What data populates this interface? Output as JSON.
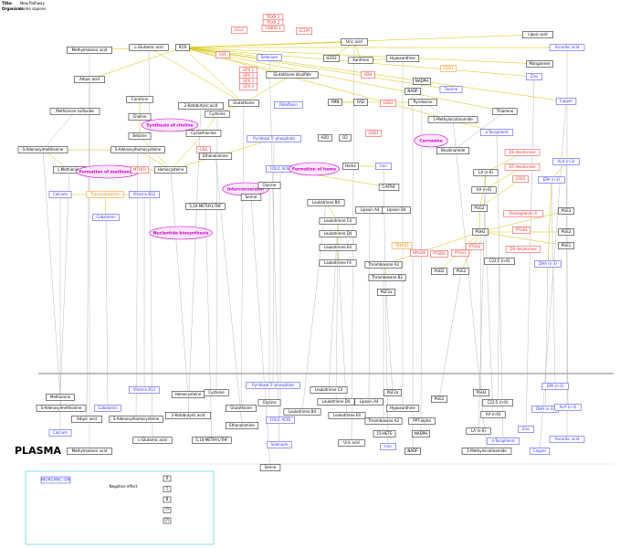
{
  "header": {
    "title_label": "Title:",
    "title": "New Pathway",
    "organism_label": "Organism:",
    "organism": "Homo sapiens"
  },
  "compartment": "PLASMA",
  "nodes": [
    {
      "label": "Methylmalonic acid"
    },
    {
      "label": "L-Glutamic acid"
    },
    {
      "label": "ROS"
    },
    {
      "label": "TRXR 1"
    },
    {
      "label": "TRXR 2"
    },
    {
      "label": "TXNRD 1"
    },
    {
      "label": "GCLC"
    },
    {
      "label": "GCLM"
    },
    {
      "label": "Selenium"
    },
    {
      "label": "GSS"
    },
    {
      "label": "GPX 1"
    },
    {
      "label": "GPX 2"
    },
    {
      "label": "GPX 3"
    },
    {
      "label": "GPX 4"
    },
    {
      "label": "Glutathione disulfide"
    },
    {
      "label": "H2O2"
    },
    {
      "label": "Uric acid"
    },
    {
      "label": "Xanthine"
    },
    {
      "label": "Hypoxanthine"
    },
    {
      "label": "XDH"
    },
    {
      "label": "NADPH"
    },
    {
      "label": "NADP"
    },
    {
      "label": "Taurine"
    },
    {
      "label": "CDO1"
    },
    {
      "label": "Lipoic acid"
    },
    {
      "label": "Ascorbic acid"
    },
    {
      "label": "Manganese"
    },
    {
      "label": "Zinc"
    },
    {
      "label": "Copper"
    },
    {
      "label": "Adipic acid"
    },
    {
      "label": "Methionine sulfoxide"
    },
    {
      "label": "Carnitine"
    },
    {
      "label": "Choline"
    },
    {
      "label": "Betaine"
    },
    {
      "label": "2-Ketobutyric acid"
    },
    {
      "label": "Cysteine"
    },
    {
      "label": "Glutathione"
    },
    {
      "label": "Riboflavin"
    },
    {
      "label": "FMN"
    },
    {
      "label": "FAD"
    },
    {
      "label": "Pyridoxine"
    },
    {
      "label": "Thiamine"
    },
    {
      "label": "Synthesis of choline"
    },
    {
      "label": "Cystathionine"
    },
    {
      "label": "Pyridoxal 5'-phosphate"
    },
    {
      "label": "H2O"
    },
    {
      "label": "O2"
    },
    {
      "label": "SOD1"
    },
    {
      "label": "SOD2"
    },
    {
      "label": "1-Methylnicotinamide"
    },
    {
      "label": "Nicotinamide"
    },
    {
      "label": "Carnosine"
    },
    {
      "label": "a-Tocopherol"
    },
    {
      "label": "S-Adenosylmethionine"
    },
    {
      "label": "S-Adenosylhomocysteine"
    },
    {
      "label": "L-Methionine"
    },
    {
      "label": "Formation of methionine"
    },
    {
      "label": "MTHFR"
    },
    {
      "label": "Homocysteine"
    },
    {
      "label": "CBS"
    },
    {
      "label": "Ethanolamine"
    },
    {
      "label": "FOLIC ACID"
    },
    {
      "label": "Formation of heme"
    },
    {
      "label": "Heme"
    },
    {
      "label": "Iron"
    },
    {
      "label": "5-MTHF"
    },
    {
      "label": "Calcium"
    },
    {
      "label": "Transcobalamin"
    },
    {
      "label": "Vitamin B12"
    },
    {
      "label": "Interconversion"
    },
    {
      "label": "Glycine"
    },
    {
      "label": "Serine"
    },
    {
      "label": "5,10-METHYL-THF"
    },
    {
      "label": "Cobalamin"
    },
    {
      "label": "Nucleotide biosynthesis"
    },
    {
      "label": "Leukotriene B4"
    },
    {
      "label": "Leukotriene C4"
    },
    {
      "label": "Leukotriene D4"
    },
    {
      "label": "Leukotriene E4"
    },
    {
      "label": "Leukotriene F4"
    },
    {
      "label": "Lipoxin A4"
    },
    {
      "label": "Lipoxin B4"
    },
    {
      "label": "LA (n-6)"
    },
    {
      "label": "AA (n-6)"
    },
    {
      "label": "ALA (n-3)"
    },
    {
      "label": "EPA (n-3)"
    },
    {
      "label": "PGG2"
    },
    {
      "label": "PGH2"
    },
    {
      "label": "D6 desaturase"
    },
    {
      "label": "D5 desaturase"
    },
    {
      "label": "COX2"
    },
    {
      "label": "Prostaglandin E"
    },
    {
      "label": "PTGES"
    },
    {
      "label": "D9 desaturase"
    },
    {
      "label": "PGE3"
    },
    {
      "label": "PGE2"
    },
    {
      "label": "PGE1"
    },
    {
      "label": "C22:5 (n-6)"
    },
    {
      "label": "DHA (n-3)"
    },
    {
      "label": "Thromboxane A2"
    },
    {
      "label": "Thromboxane B2"
    },
    {
      "label": "PGF2a"
    },
    {
      "label": "PGD2"
    },
    {
      "label": "PGE2"
    },
    {
      "label": "TBXAS1"
    },
    {
      "label": "HPGDS"
    },
    {
      "label": "PTGDS"
    },
    {
      "label": "PTGS1"
    },
    {
      "label": "PTGS2"
    },
    {
      "label": "Methionine"
    },
    {
      "label": "S-Adenosylmethionine"
    },
    {
      "label": "Calcium"
    },
    {
      "label": "Adipic acid"
    },
    {
      "label": "Methylmalonic acid"
    },
    {
      "label": "Cobalamin"
    },
    {
      "label": "Vitamin B12"
    },
    {
      "label": "S-Adenosylhomocysteine"
    },
    {
      "label": "L-Glutamic acid"
    },
    {
      "label": "Homocysteine"
    },
    {
      "label": "Cysteine"
    },
    {
      "label": "2-Ketobutyric acid"
    },
    {
      "label": "5,10-METHYL-THF"
    },
    {
      "label": "Pyridoxal 5'-phosphate"
    },
    {
      "label": "Glycine"
    },
    {
      "label": "FOLIC ACID"
    },
    {
      "label": "Selenium"
    },
    {
      "label": "Glutathione"
    },
    {
      "label": "Ethanolamine"
    },
    {
      "label": "Serine"
    },
    {
      "label": "Leukotriene C4"
    },
    {
      "label": "Leukotriene D4"
    },
    {
      "label": "Leukotriene B4"
    },
    {
      "label": "Leukotriene E4"
    },
    {
      "label": "Uric acid"
    },
    {
      "label": "Lipoxin A4"
    },
    {
      "label": "PGF2a"
    },
    {
      "label": "Hypoxanthine"
    },
    {
      "label": "Thromboxane A2"
    },
    {
      "label": "PPT-alpha"
    },
    {
      "label": "15-HETE"
    },
    {
      "label": "NADPH"
    },
    {
      "label": "Iron"
    },
    {
      "label": "NADP"
    },
    {
      "label": "PGE2"
    },
    {
      "label": "PGH2"
    },
    {
      "label": "C22:5 (n-6)"
    },
    {
      "label": "AA (n-6)"
    },
    {
      "label": "LA (n-6)"
    },
    {
      "label": "a-Tocopherol"
    },
    {
      "label": "1-Methylnicotinamide"
    },
    {
      "label": "Zinc"
    },
    {
      "label": "EPA (n-3)"
    },
    {
      "label": "DHA (n-3)"
    },
    {
      "label": "ALA (n-3)"
    },
    {
      "label": "Ascorbic acid"
    },
    {
      "label": "Copper"
    }
  ],
  "legend": {
    "inorganic": "INORGANIC ION",
    "negative": "Negative effect",
    "boxes": [
      "0",
      "1",
      "B",
      "??",
      "(?)"
    ]
  }
}
